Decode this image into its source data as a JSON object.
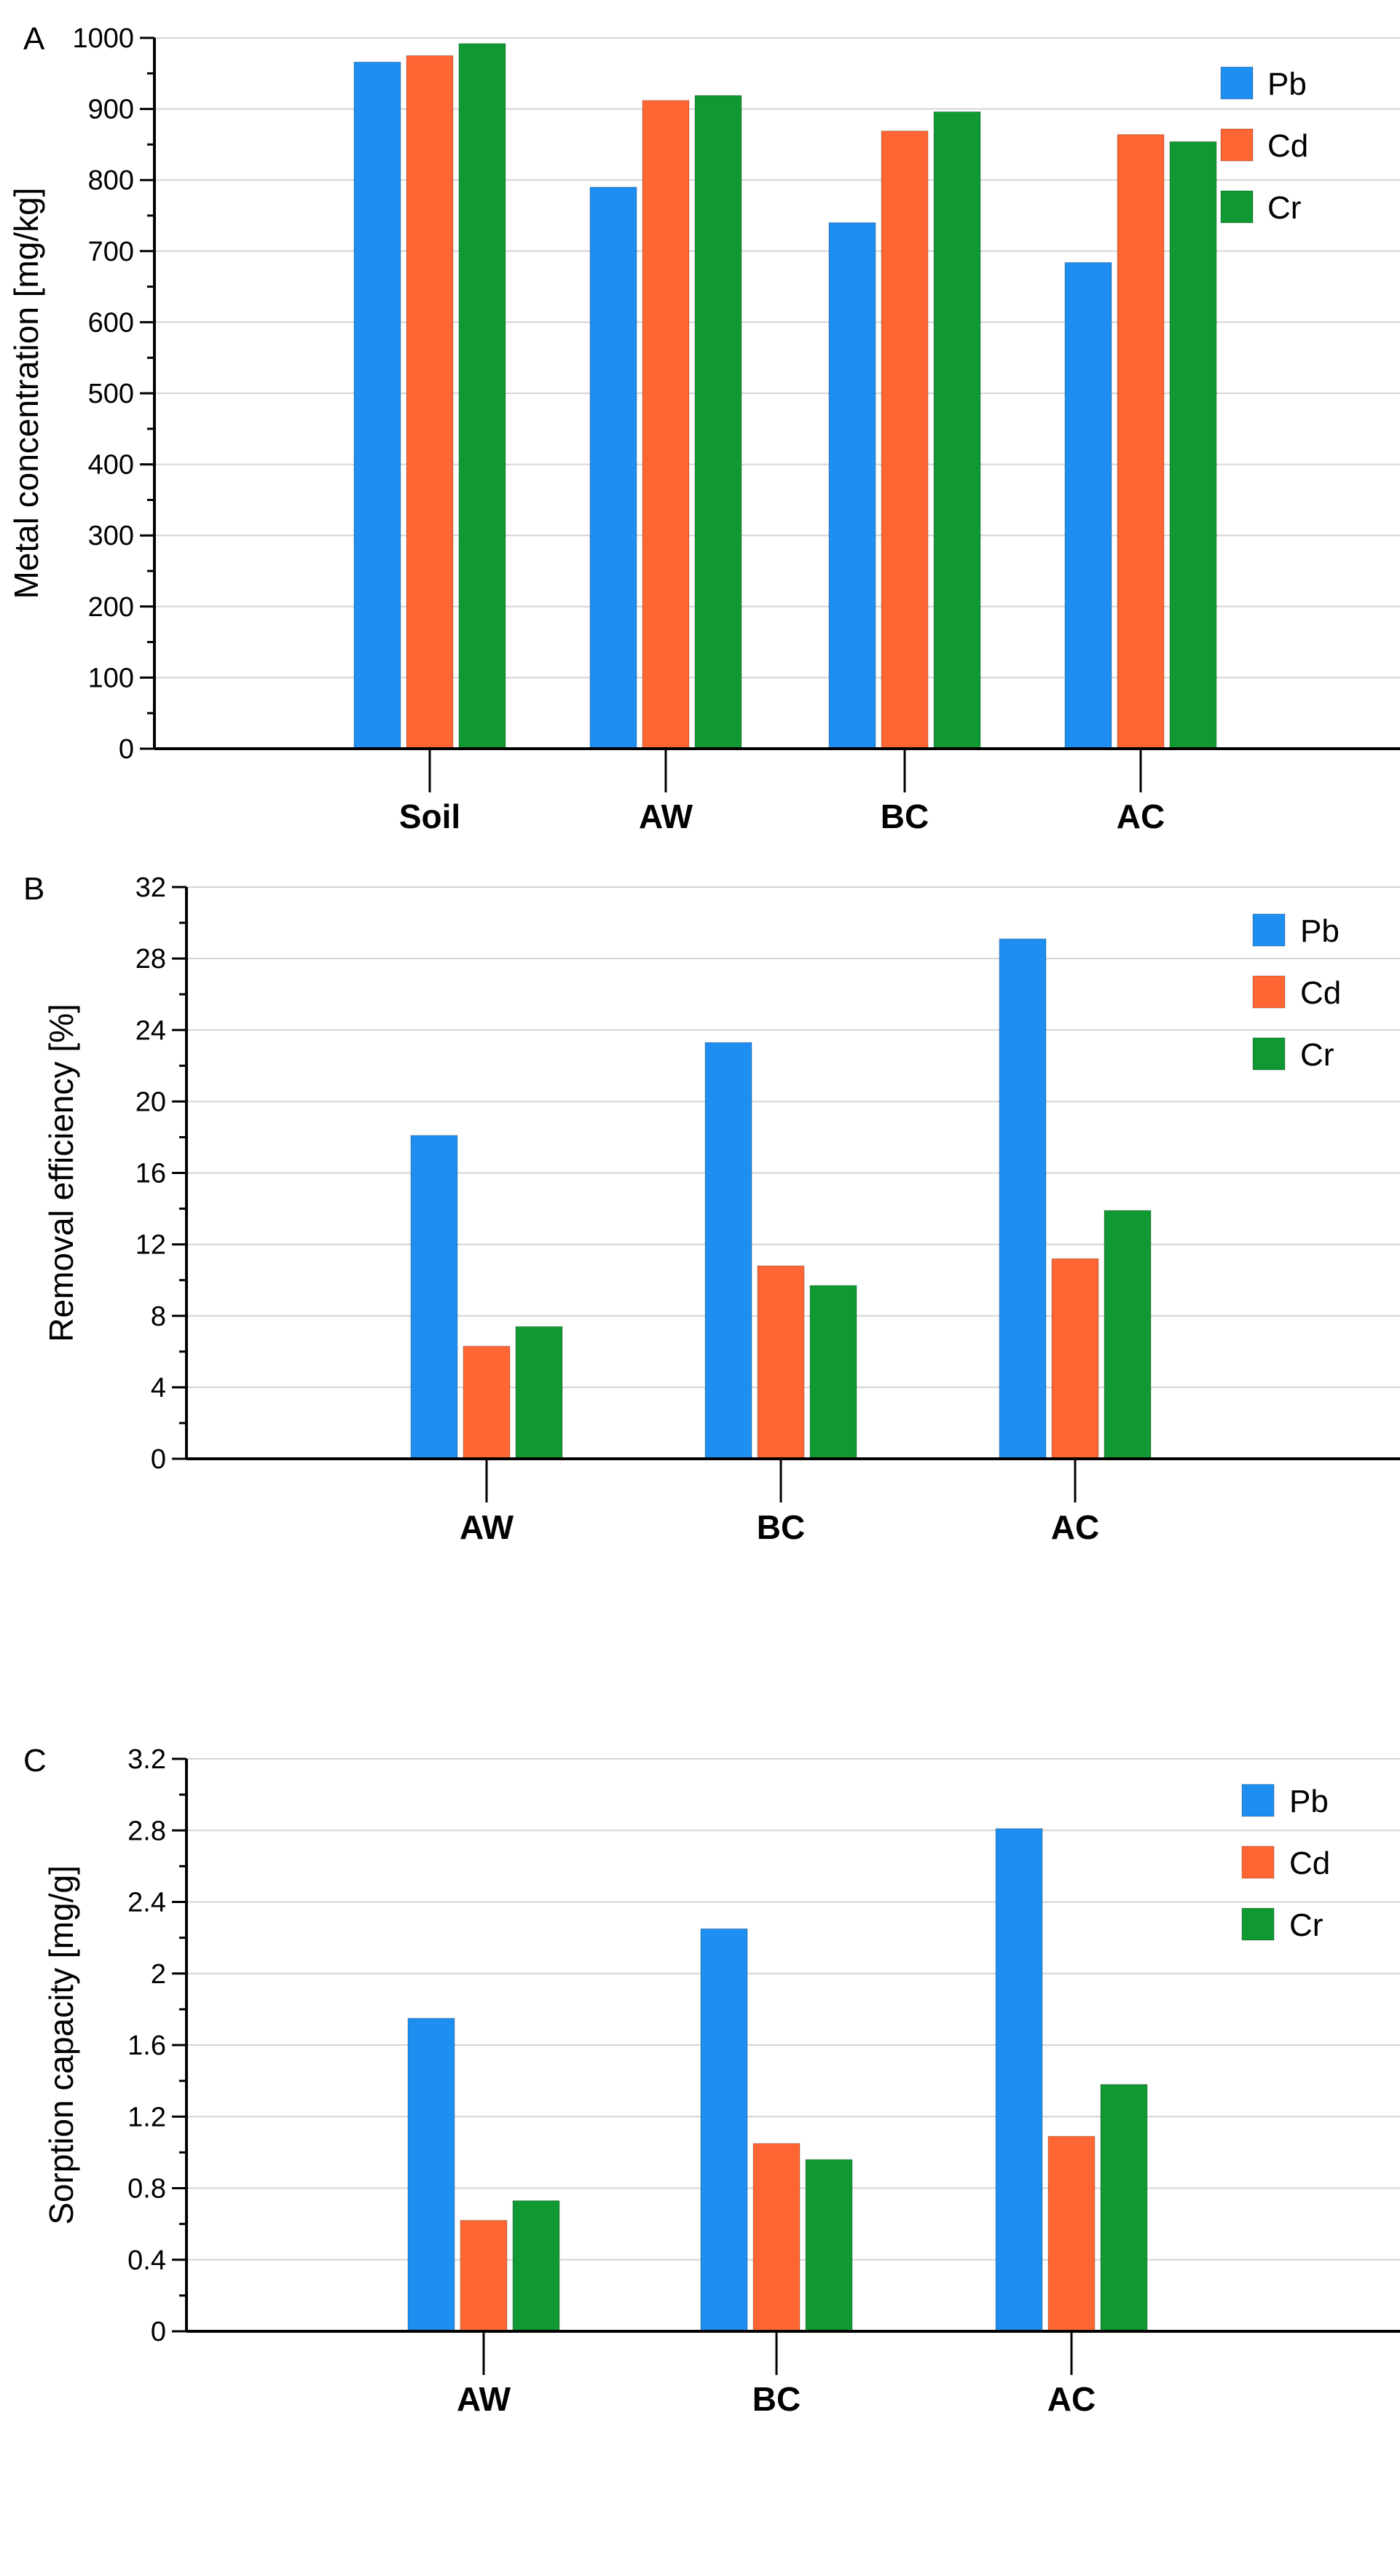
{
  "colors": {
    "Pb": "#1f8ef1",
    "Cd": "#ff6633",
    "Cr": "#109933",
    "grid": "#d4d4d4",
    "axis": "#000000"
  },
  "chart_data": [
    {
      "panel": "A",
      "type": "bar",
      "title": "",
      "xlabel": "",
      "ylabel": "Metal concentration [mg/kg]",
      "ylim": [
        0,
        1000
      ],
      "yticks": [
        0,
        100,
        200,
        300,
        400,
        500,
        600,
        700,
        800,
        900,
        1000
      ],
      "ytick_labels": [
        "0",
        "100",
        "200",
        "300",
        "400",
        "500",
        "600",
        "700",
        "800",
        "900",
        "1000"
      ],
      "categories": [
        "Soil",
        "AW",
        "BC",
        "AC"
      ],
      "series": [
        {
          "name": "Pb",
          "values": [
            966,
            790,
            740,
            684
          ]
        },
        {
          "name": "Cd",
          "values": [
            975,
            912,
            869,
            864
          ]
        },
        {
          "name": "Cr",
          "values": [
            992,
            919,
            896,
            854
          ]
        }
      ],
      "legend": "top-right",
      "grid": true
    },
    {
      "panel": "B",
      "type": "bar",
      "title": "",
      "xlabel": "",
      "ylabel": "Removal efficiency [%]",
      "ylim": [
        0,
        32
      ],
      "yticks": [
        0,
        4,
        8,
        12,
        16,
        20,
        24,
        28,
        32
      ],
      "ytick_labels": [
        "0",
        "4",
        "8",
        "12",
        "16",
        "20",
        "24",
        "28",
        "32"
      ],
      "categories": [
        "AW",
        "BC",
        "AC"
      ],
      "series": [
        {
          "name": "Pb",
          "values": [
            18.1,
            23.3,
            29.1
          ]
        },
        {
          "name": "Cd",
          "values": [
            6.3,
            10.8,
            11.2
          ]
        },
        {
          "name": "Cr",
          "values": [
            7.4,
            9.7,
            13.9
          ]
        }
      ],
      "legend": "top-right",
      "grid": true
    },
    {
      "panel": "C",
      "type": "bar",
      "title": "",
      "xlabel": "",
      "ylabel": "Sorption capacity [mg/g]",
      "ylim": [
        0,
        3.2
      ],
      "yticks": [
        0,
        0.4,
        0.8,
        1.2,
        1.6,
        2.0,
        2.4,
        2.8,
        3.2
      ],
      "ytick_labels": [
        "0",
        "0.4",
        "0.8",
        "1.2",
        "1.6",
        "2",
        "2.4",
        "2.8",
        "3.2"
      ],
      "categories": [
        "AW",
        "BC",
        "AC"
      ],
      "series": [
        {
          "name": "Pb",
          "values": [
            1.75,
            2.25,
            2.81
          ]
        },
        {
          "name": "Cd",
          "values": [
            0.62,
            1.05,
            1.09
          ]
        },
        {
          "name": "Cr",
          "values": [
            0.73,
            0.96,
            1.38
          ]
        }
      ],
      "legend": "top-right",
      "grid": true
    }
  ]
}
